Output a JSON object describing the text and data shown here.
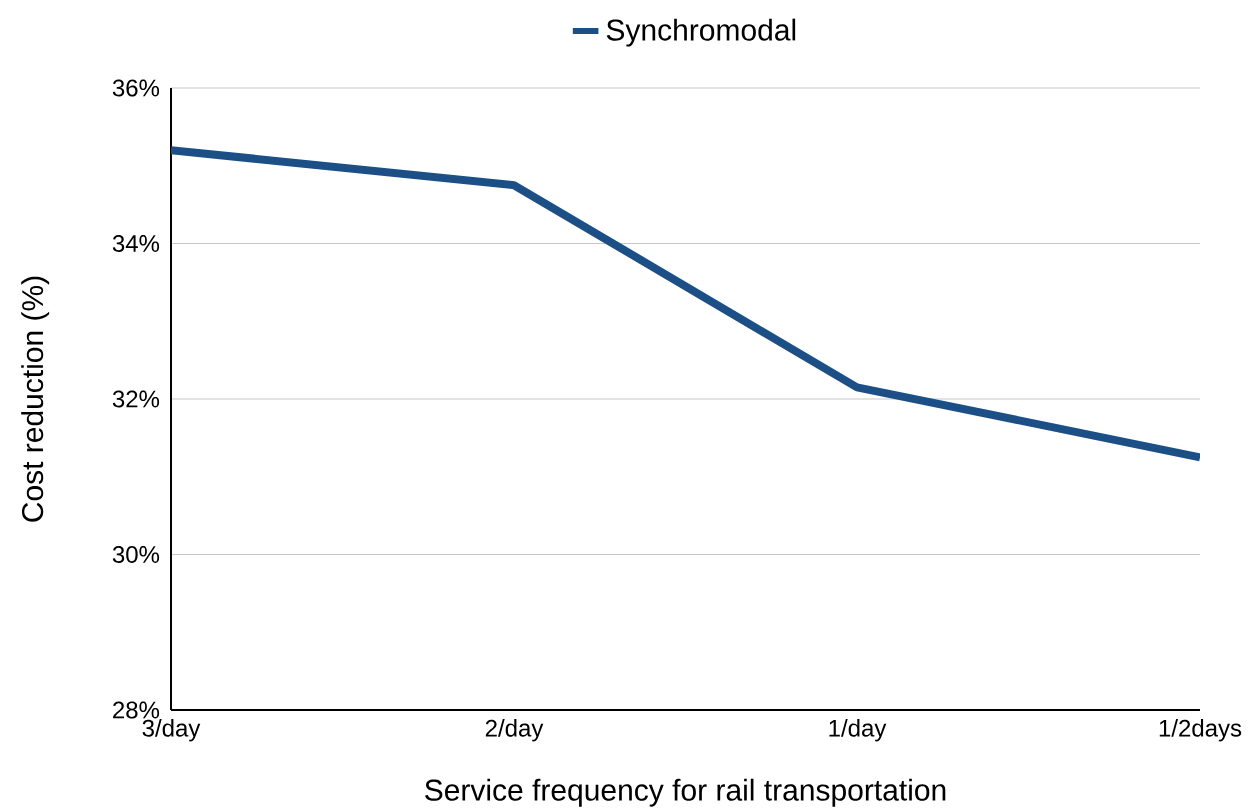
{
  "chart_data": {
    "type": "line",
    "xlabel": "Service frequency for rail transportation",
    "ylabel": "Cost reduction (%)",
    "categories": [
      "3/day",
      "2/day",
      "1/day",
      "1/2days"
    ],
    "series": [
      {
        "name": "Synchromodal",
        "color": "#1c4f86",
        "values": [
          35.2,
          34.75,
          32.15,
          31.25
        ]
      }
    ],
    "ylim": [
      28,
      36
    ],
    "yticks": [
      {
        "value": 28,
        "label": "28%"
      },
      {
        "value": 30,
        "label": "30%"
      },
      {
        "value": 32,
        "label": "32%"
      },
      {
        "value": 34,
        "label": "34%"
      },
      {
        "value": 36,
        "label": "36%"
      }
    ],
    "grid": "y",
    "legend": "top"
  }
}
